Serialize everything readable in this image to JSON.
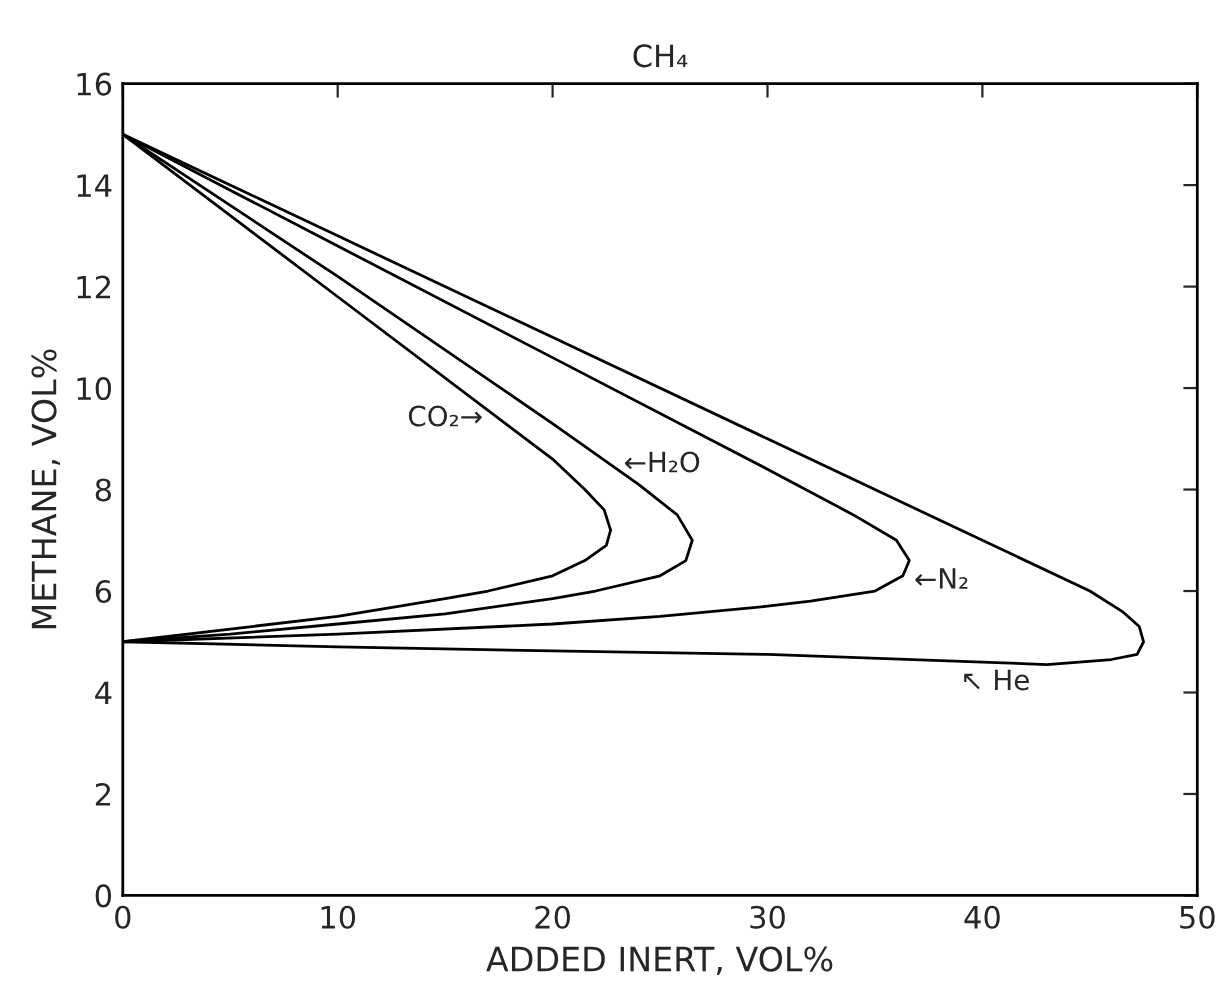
{
  "chart_data": {
    "type": "line",
    "title": "CH₄",
    "xlabel": "ADDED INERT, VOL%",
    "ylabel": "METHANE, VOL%",
    "xlim": [
      0,
      50
    ],
    "ylim": [
      0,
      16
    ],
    "xticks": [
      0,
      10,
      20,
      30,
      40,
      50
    ],
    "yticks": [
      0,
      2,
      4,
      6,
      8,
      10,
      12,
      14,
      16
    ],
    "grid": false,
    "legend": false,
    "series": [
      {
        "color": "#000000",
        "x": [
          0,
          10,
          20,
          21.5,
          22.4,
          22.7,
          22.5,
          21.5,
          20,
          17,
          15,
          10,
          5,
          0
        ],
        "values": [
          15,
          11.8,
          8.6,
          8.0,
          7.6,
          7.2,
          6.9,
          6.6,
          6.3,
          6.0,
          5.85,
          5.5,
          5.25,
          5
        ]
      },
      {
        "color": "#000000",
        "x": [
          0,
          10,
          20,
          24,
          25.8,
          26.5,
          26.2,
          25,
          22,
          20,
          15,
          10,
          5,
          0
        ],
        "values": [
          15,
          12.2,
          9.3,
          8.1,
          7.5,
          7.0,
          6.6,
          6.3,
          6.0,
          5.85,
          5.55,
          5.35,
          5.15,
          5
        ]
      },
      {
        "color": "#000000",
        "x": [
          0,
          10,
          20,
          30,
          34,
          36,
          36.6,
          36.3,
          35,
          32,
          30,
          25,
          20,
          10,
          0
        ],
        "values": [
          15,
          12.8,
          10.6,
          8.4,
          7.5,
          7.0,
          6.6,
          6.3,
          6.0,
          5.8,
          5.7,
          5.5,
          5.35,
          5.15,
          5
        ]
      },
      {
        "color": "#000000",
        "x": [
          0,
          10,
          20,
          30,
          40,
          45,
          46.5,
          47.3,
          47.5,
          47.2,
          46,
          43,
          40,
          30,
          20,
          10,
          0
        ],
        "values": [
          15,
          13.0,
          11.0,
          9.0,
          7.0,
          6.0,
          5.6,
          5.3,
          5.0,
          4.75,
          4.65,
          4.55,
          4.6,
          4.75,
          4.82,
          4.9,
          5
        ]
      }
    ],
    "annotations": [
      "CO₂→",
      "←H₂O",
      "←N₂",
      "↖ He"
    ]
  }
}
